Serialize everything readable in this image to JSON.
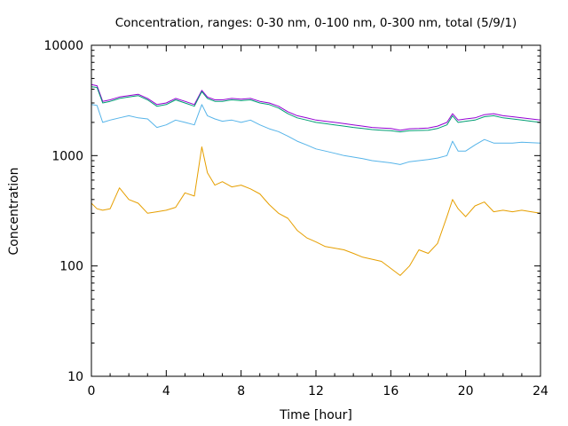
{
  "chart_data": {
    "type": "line",
    "title": "Concentration, ranges: 0-30 nm, 0-100 nm, 0-300 nm, total (5/9/1)",
    "xlabel": "Time [hour]",
    "ylabel": "Concentration",
    "xlim": [
      0,
      24
    ],
    "ylim": [
      10,
      10000
    ],
    "yscale": "log",
    "grid": false,
    "legend": "none",
    "x_ticks": [
      "0",
      "4",
      "8",
      "12",
      "16",
      "20",
      "24"
    ],
    "x_tick_values": [
      0,
      4,
      8,
      12,
      16,
      20,
      24
    ],
    "y_ticks": [
      "10",
      "100",
      "1000",
      "10000"
    ],
    "y_tick_values": [
      10,
      100,
      1000,
      10000
    ],
    "x": [
      0,
      0.3,
      0.6,
      1.0,
      1.5,
      2.0,
      2.5,
      3.0,
      3.5,
      4.0,
      4.5,
      5.0,
      5.5,
      5.9,
      6.2,
      6.6,
      7.0,
      7.5,
      8.0,
      8.5,
      9.0,
      9.5,
      10.0,
      10.5,
      11.0,
      11.5,
      12.0,
      12.5,
      13.0,
      13.5,
      14.0,
      14.5,
      15.0,
      15.5,
      16.0,
      16.5,
      17.0,
      17.5,
      18.0,
      18.5,
      19.0,
      19.3,
      19.6,
      20.0,
      20.5,
      21.0,
      21.5,
      22.0,
      22.5,
      23.0,
      23.5,
      24.0
    ],
    "series": [
      {
        "name": "total",
        "color": "#9400d3",
        "values": [
          4400,
          4300,
          3100,
          3200,
          3400,
          3500,
          3600,
          3300,
          2900,
          3000,
          3300,
          3100,
          2900,
          3900,
          3400,
          3200,
          3200,
          3300,
          3250,
          3300,
          3100,
          3000,
          2800,
          2500,
          2300,
          2200,
          2100,
          2050,
          2000,
          1950,
          1900,
          1850,
          1800,
          1780,
          1760,
          1700,
          1750,
          1760,
          1780,
          1850,
          2000,
          2400,
          2100,
          2150,
          2200,
          2350,
          2400,
          2300,
          2250,
          2200,
          2150,
          2100
        ]
      },
      {
        "name": "0-300 nm",
        "color": "#009e73",
        "values": [
          4200,
          4150,
          3000,
          3100,
          3300,
          3400,
          3500,
          3200,
          2800,
          2900,
          3200,
          3000,
          2800,
          3800,
          3300,
          3100,
          3100,
          3200,
          3150,
          3200,
          3000,
          2900,
          2700,
          2400,
          2200,
          2100,
          2000,
          1950,
          1900,
          1850,
          1800,
          1760,
          1720,
          1700,
          1680,
          1640,
          1680,
          1690,
          1700,
          1760,
          1900,
          2300,
          2000,
          2050,
          2100,
          2250,
          2300,
          2200,
          2150,
          2100,
          2050,
          2000
        ]
      },
      {
        "name": "0-100 nm",
        "color": "#56b4e9",
        "values": [
          2900,
          2850,
          2000,
          2100,
          2200,
          2300,
          2200,
          2150,
          1800,
          1900,
          2100,
          2000,
          1900,
          2900,
          2300,
          2150,
          2050,
          2100,
          2000,
          2100,
          1900,
          1750,
          1650,
          1500,
          1350,
          1250,
          1150,
          1100,
          1050,
          1000,
          970,
          940,
          900,
          880,
          860,
          830,
          880,
          900,
          920,
          950,
          1000,
          1350,
          1100,
          1100,
          1250,
          1400,
          1300,
          1300,
          1300,
          1320,
          1310,
          1300
        ]
      },
      {
        "name": "0-30 nm",
        "color": "#e69f00",
        "values": [
          370,
          330,
          320,
          330,
          510,
          400,
          370,
          300,
          310,
          320,
          340,
          460,
          430,
          1200,
          700,
          540,
          580,
          520,
          540,
          500,
          450,
          360,
          300,
          270,
          210,
          180,
          165,
          150,
          145,
          140,
          130,
          120,
          115,
          110,
          95,
          82,
          100,
          140,
          130,
          160,
          280,
          400,
          330,
          280,
          350,
          380,
          310,
          320,
          310,
          320,
          310,
          300
        ]
      }
    ]
  }
}
